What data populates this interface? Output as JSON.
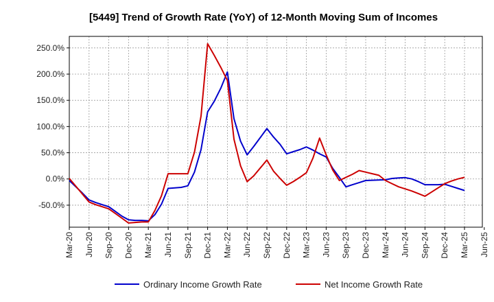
{
  "chart_data": {
    "type": "line",
    "title": "[5449]  Trend of Growth Rate (YoY) of 12-Month Moving Sum of Incomes",
    "x": [
      "Mar-20",
      "Apr-20",
      "May-20",
      "Jun-20",
      "Jul-20",
      "Aug-20",
      "Sep-20",
      "Oct-20",
      "Nov-20",
      "Dec-20",
      "Jan-21",
      "Feb-21",
      "Mar-21",
      "Apr-21",
      "May-21",
      "Jun-21",
      "Jul-21",
      "Aug-21",
      "Sep-21",
      "Oct-21",
      "Nov-21",
      "Dec-21",
      "Jan-22",
      "Feb-22",
      "Mar-22",
      "Apr-22",
      "May-22",
      "Jun-22",
      "Jul-22",
      "Aug-22",
      "Sep-22",
      "Oct-22",
      "Nov-22",
      "Dec-22",
      "Jan-23",
      "Feb-23",
      "Mar-23",
      "Apr-23",
      "May-23",
      "Jun-23",
      "Jul-23",
      "Aug-23",
      "Sep-23",
      "Oct-23",
      "Nov-23",
      "Dec-23",
      "Jan-24",
      "Feb-24",
      "Mar-24",
      "Apr-24",
      "May-24",
      "Jun-24",
      "Jul-24",
      "Aug-24",
      "Sep-24",
      "Oct-24",
      "Nov-24",
      "Dec-24",
      "Jan-25",
      "Feb-25",
      "Mar-25"
    ],
    "x_ticks": [
      "Mar-20",
      "Jun-20",
      "Sep-20",
      "Dec-20",
      "Mar-21",
      "Jun-21",
      "Sep-21",
      "Dec-21",
      "Mar-22",
      "Jun-22",
      "Sep-22",
      "Dec-22",
      "Mar-23",
      "Jun-23",
      "Sep-23",
      "Dec-23",
      "Mar-24",
      "Jun-24",
      "Sep-24",
      "Dec-24",
      "Mar-25",
      "Jun-25"
    ],
    "ylim": [
      -92,
      272
    ],
    "y_ticks": [
      -50,
      0,
      50,
      100,
      150,
      200,
      250
    ],
    "y_tick_labels": [
      "-50.0%",
      "0.0%",
      "50.0%",
      "100.0%",
      "150.0%",
      "200.0%",
      "250.0%"
    ],
    "grid": true,
    "legend_position": "bottom",
    "series": [
      {
        "name": "Ordinary Income Growth Rate",
        "color": "#0000cc",
        "values": [
          -3,
          -15,
          -27,
          -40,
          -45,
          -49,
          -53,
          -62,
          -71,
          -78,
          -79,
          -79,
          -80,
          -68,
          -48,
          -18,
          -17,
          -16,
          -13,
          13,
          56,
          128,
          148,
          173,
          204,
          115,
          72,
          46,
          62,
          79,
          96,
          80,
          66,
          48,
          52,
          56,
          61,
          55,
          48,
          42,
          20,
          3,
          -15,
          -11,
          -7,
          -3,
          -2.5,
          -2,
          -1.5,
          1,
          2,
          2.5,
          0,
          -5,
          -11,
          -11,
          -11,
          -10,
          -14,
          -18,
          -22
        ]
      },
      {
        "name": "Net Income Growth Rate",
        "color": "#cc0000",
        "values": [
          1,
          -14,
          -29,
          -44,
          -49,
          -53,
          -57,
          -66,
          -75,
          -84,
          -83,
          -82,
          -82,
          -60,
          -32,
          10,
          10,
          10,
          10,
          51,
          120,
          258,
          236,
          213,
          188,
          76,
          25,
          -5,
          6,
          21,
          36,
          15,
          1,
          -12,
          -5,
          3,
          12,
          40,
          78,
          46,
          17,
          -3,
          3,
          9,
          16,
          13,
          10,
          7,
          -3,
          -9,
          -15,
          -19,
          -23,
          -28,
          -33,
          -25,
          -17,
          -9,
          -4,
          0,
          3
        ]
      }
    ]
  }
}
